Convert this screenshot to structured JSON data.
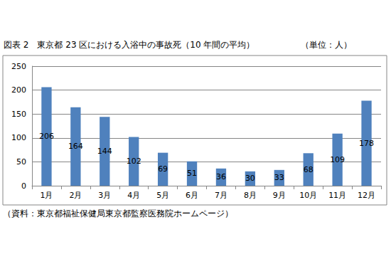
{
  "chart_data": {
    "type": "bar",
    "title": "図表 2　東京都 23 区における入浴中の事故死（10 年間の平均）",
    "subtitle": "（単位：人）",
    "annotations": [
      "（資料：東京都福祉保健局東京都監察医務院ホームページ）"
    ],
    "categories": [
      "1月",
      "2月",
      "3月",
      "4月",
      "5月",
      "6月",
      "7月",
      "8月",
      "9月",
      "10月",
      "11月",
      "12月"
    ],
    "values": [
      206,
      164,
      144,
      102,
      69,
      51,
      36,
      30,
      33,
      68,
      109,
      178
    ],
    "color": "#4f81bd",
    "ylim": [
      0,
      250
    ],
    "yticks": [
      0,
      50,
      100,
      150,
      200,
      250
    ],
    "grid": true,
    "data_labels": true
  }
}
